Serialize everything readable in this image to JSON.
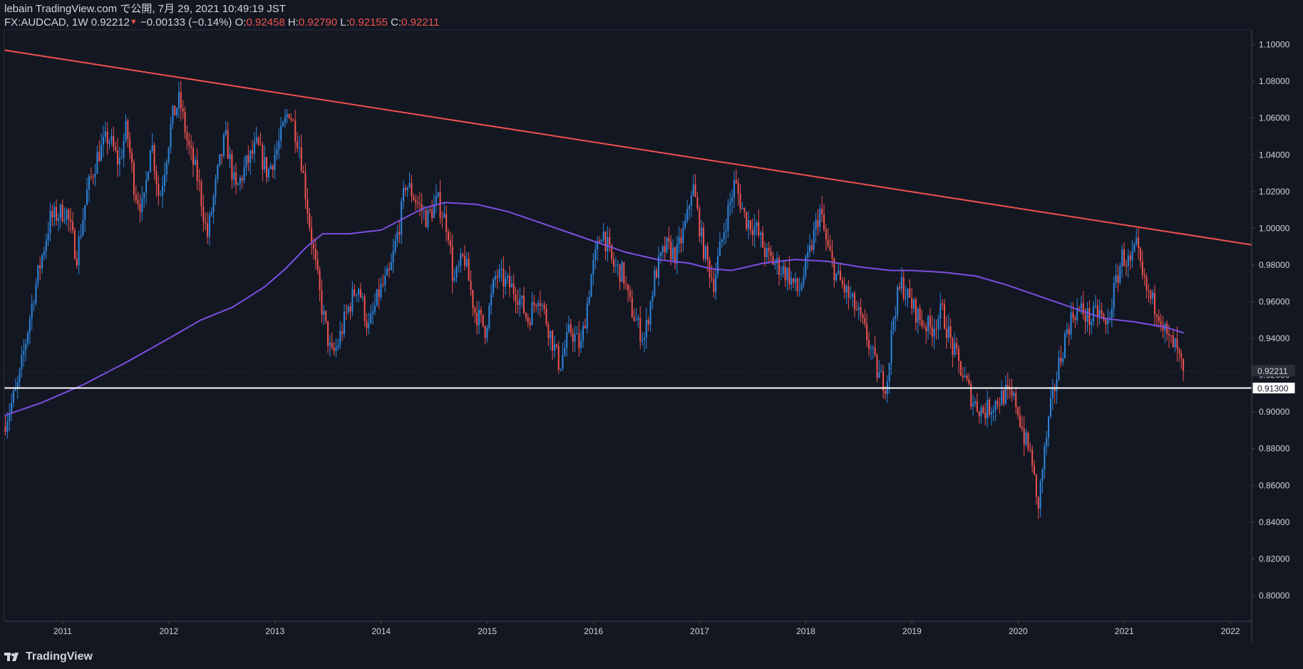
{
  "header": {
    "publisher": "lebain TradingView.com で公開, 7月 29, 2021 10:49:19 JST",
    "symbol": "FX:AUDCAD, 1W",
    "last": "0.92212",
    "change": "−0.00133 (−0.14%)",
    "o_label": "O:",
    "o_value": "0.92458",
    "h_label": "H:",
    "h_value": "0.92790",
    "l_label": "L:",
    "l_value": "0.92155",
    "c_label": "C:",
    "c_value": "0.92211"
  },
  "brand": {
    "name": "TradingView"
  },
  "colors": {
    "background": "#131722",
    "up": "#2e86de",
    "down": "#ef5350",
    "ma": "#7b4fe0",
    "trendline": "#f0504f",
    "support": "#ffffff",
    "axis_text": "#d1d4dc"
  },
  "chart_data": {
    "type": "candlestick",
    "title": "FX:AUDCAD, 1W",
    "x_ticks": [
      "2011",
      "2012",
      "2013",
      "2014",
      "2015",
      "2016",
      "2017",
      "2018",
      "2019",
      "2020",
      "2021",
      "2022"
    ],
    "y_ticks": [
      "0.80000",
      "0.82000",
      "0.84000",
      "0.86000",
      "0.88000",
      "0.90000",
      "0.92000",
      "0.94000",
      "0.96000",
      "0.98000",
      "1.00000",
      "1.02000",
      "1.04000",
      "1.06000",
      "1.08000",
      "1.10000"
    ],
    "ylim": [
      0.786,
      1.108
    ],
    "xlim": [
      2010.45,
      2022.2
    ],
    "price_anchors": [
      [
        2010.46,
        0.892
      ],
      [
        2010.6,
        0.915
      ],
      [
        2010.75,
        0.965
      ],
      [
        2010.9,
        1.005
      ],
      [
        2011.05,
        1.01
      ],
      [
        2011.15,
        0.985
      ],
      [
        2011.25,
        1.02
      ],
      [
        2011.35,
        1.04
      ],
      [
        2011.45,
        1.05
      ],
      [
        2011.55,
        1.035
      ],
      [
        2011.62,
        1.055
      ],
      [
        2011.7,
        1.02
      ],
      [
        2011.78,
        1.01
      ],
      [
        2011.85,
        1.05
      ],
      [
        2011.93,
        1.015
      ],
      [
        2012.05,
        1.06
      ],
      [
        2012.12,
        1.07
      ],
      [
        2012.2,
        1.045
      ],
      [
        2012.3,
        1.025
      ],
      [
        2012.38,
        0.995
      ],
      [
        2012.48,
        1.03
      ],
      [
        2012.55,
        1.05
      ],
      [
        2012.65,
        1.02
      ],
      [
        2012.75,
        1.035
      ],
      [
        2012.85,
        1.045
      ],
      [
        2012.95,
        1.03
      ],
      [
        2013.05,
        1.045
      ],
      [
        2013.15,
        1.065
      ],
      [
        2013.25,
        1.045
      ],
      [
        2013.35,
        1.0
      ],
      [
        2013.45,
        0.96
      ],
      [
        2013.55,
        0.93
      ],
      [
        2013.6,
        0.935
      ],
      [
        2013.7,
        0.955
      ],
      [
        2013.8,
        0.97
      ],
      [
        2013.9,
        0.945
      ],
      [
        2014.0,
        0.965
      ],
      [
        2014.1,
        0.975
      ],
      [
        2014.2,
        1.005
      ],
      [
        2014.25,
        1.025
      ],
      [
        2014.35,
        1.015
      ],
      [
        2014.45,
        1.005
      ],
      [
        2014.55,
        1.015
      ],
      [
        2014.65,
        1.0
      ],
      [
        2014.7,
        0.97
      ],
      [
        2014.8,
        0.985
      ],
      [
        2014.9,
        0.955
      ],
      [
        2015.0,
        0.945
      ],
      [
        2015.1,
        0.975
      ],
      [
        2015.2,
        0.97
      ],
      [
        2015.3,
        0.965
      ],
      [
        2015.4,
        0.95
      ],
      [
        2015.5,
        0.965
      ],
      [
        2015.6,
        0.945
      ],
      [
        2015.7,
        0.925
      ],
      [
        2015.8,
        0.945
      ],
      [
        2015.9,
        0.935
      ],
      [
        2016.0,
        0.975
      ],
      [
        2016.1,
        1.0
      ],
      [
        2016.2,
        0.98
      ],
      [
        2016.3,
        0.975
      ],
      [
        2016.35,
        0.96
      ],
      [
        2016.45,
        0.945
      ],
      [
        2016.5,
        0.94
      ],
      [
        2016.6,
        0.975
      ],
      [
        2016.7,
        0.99
      ],
      [
        2016.8,
        0.985
      ],
      [
        2016.9,
        1.005
      ],
      [
        2016.95,
        1.025
      ],
      [
        2017.05,
        0.99
      ],
      [
        2017.15,
        0.97
      ],
      [
        2017.25,
        1.0
      ],
      [
        2017.35,
        1.025
      ],
      [
        2017.45,
        1.005
      ],
      [
        2017.55,
        1.0
      ],
      [
        2017.65,
        0.985
      ],
      [
        2017.75,
        0.98
      ],
      [
        2017.85,
        0.975
      ],
      [
        2017.95,
        0.965
      ],
      [
        2018.05,
        0.985
      ],
      [
        2018.15,
        1.01
      ],
      [
        2018.22,
        0.99
      ],
      [
        2018.3,
        0.975
      ],
      [
        2018.4,
        0.965
      ],
      [
        2018.5,
        0.955
      ],
      [
        2018.6,
        0.94
      ],
      [
        2018.7,
        0.92
      ],
      [
        2018.78,
        0.915
      ],
      [
        2018.85,
        0.955
      ],
      [
        2018.92,
        0.97
      ],
      [
        2019.0,
        0.96
      ],
      [
        2019.1,
        0.95
      ],
      [
        2019.2,
        0.945
      ],
      [
        2019.3,
        0.955
      ],
      [
        2019.4,
        0.935
      ],
      [
        2019.5,
        0.92
      ],
      [
        2019.6,
        0.905
      ],
      [
        2019.7,
        0.9
      ],
      [
        2019.8,
        0.905
      ],
      [
        2019.9,
        0.91
      ],
      [
        2020.0,
        0.905
      ],
      [
        2020.08,
        0.885
      ],
      [
        2020.15,
        0.875
      ],
      [
        2020.2,
        0.845
      ],
      [
        2020.25,
        0.87
      ],
      [
        2020.32,
        0.9
      ],
      [
        2020.4,
        0.925
      ],
      [
        2020.48,
        0.945
      ],
      [
        2020.55,
        0.955
      ],
      [
        2020.62,
        0.955
      ],
      [
        2020.7,
        0.95
      ],
      [
        2020.78,
        0.955
      ],
      [
        2020.85,
        0.945
      ],
      [
        2020.92,
        0.965
      ],
      [
        2021.0,
        0.985
      ],
      [
        2021.08,
        0.98
      ],
      [
        2021.13,
        0.99
      ],
      [
        2021.2,
        0.97
      ],
      [
        2021.28,
        0.96
      ],
      [
        2021.35,
        0.955
      ],
      [
        2021.42,
        0.94
      ],
      [
        2021.5,
        0.935
      ],
      [
        2021.57,
        0.9222
      ]
    ],
    "moving_average": [
      [
        2010.45,
        0.898
      ],
      [
        2010.8,
        0.905
      ],
      [
        2011.2,
        0.915
      ],
      [
        2011.6,
        0.927
      ],
      [
        2012.0,
        0.94
      ],
      [
        2012.3,
        0.95
      ],
      [
        2012.6,
        0.957
      ],
      [
        2012.9,
        0.968
      ],
      [
        2013.1,
        0.978
      ],
      [
        2013.3,
        0.99
      ],
      [
        2013.45,
        0.997
      ],
      [
        2013.7,
        0.997
      ],
      [
        2014.0,
        0.999
      ],
      [
        2014.2,
        1.005
      ],
      [
        2014.4,
        1.011
      ],
      [
        2014.6,
        1.014
      ],
      [
        2014.9,
        1.013
      ],
      [
        2015.2,
        1.009
      ],
      [
        2015.5,
        1.003
      ],
      [
        2015.8,
        0.997
      ],
      [
        2016.0,
        0.993
      ],
      [
        2016.3,
        0.987
      ],
      [
        2016.6,
        0.983
      ],
      [
        2016.9,
        0.981
      ],
      [
        2017.1,
        0.978
      ],
      [
        2017.3,
        0.977
      ],
      [
        2017.6,
        0.981
      ],
      [
        2017.9,
        0.983
      ],
      [
        2018.2,
        0.982
      ],
      [
        2018.5,
        0.979
      ],
      [
        2018.8,
        0.977
      ],
      [
        2019.0,
        0.977
      ],
      [
        2019.3,
        0.976
      ],
      [
        2019.6,
        0.974
      ],
      [
        2019.9,
        0.969
      ],
      [
        2020.2,
        0.963
      ],
      [
        2020.5,
        0.957
      ],
      [
        2020.8,
        0.951
      ],
      [
        2021.1,
        0.949
      ],
      [
        2021.4,
        0.946
      ],
      [
        2021.56,
        0.943
      ]
    ],
    "trendline": {
      "from": [
        2010.45,
        1.097
      ],
      "to": [
        2022.2,
        0.991
      ]
    },
    "support_level": 0.913,
    "support_label": "0.91300",
    "last_price_label": "0.92211",
    "last_price": 0.92211
  }
}
